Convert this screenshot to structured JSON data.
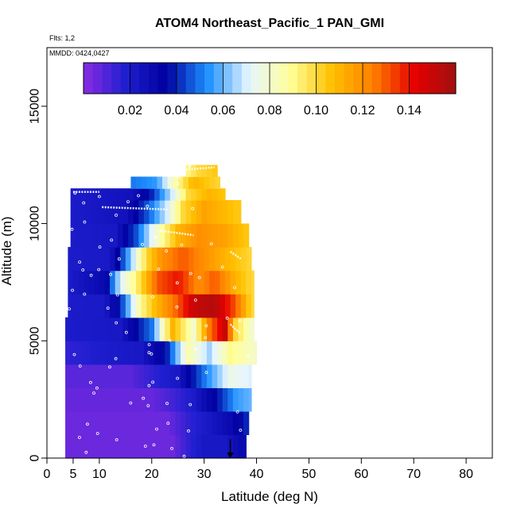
{
  "chart_data": {
    "type": "heatmap",
    "title": "ATOM4 Northeast_Pacific_1 PAN_GMI",
    "flights_label": "Flts: 1,2",
    "dates_label": "MMDD: 0424,0427",
    "xlabel": "Latitude (deg N)",
    "ylabel": "Altitude (m)",
    "xlim": [
      0,
      85
    ],
    "ylim": [
      0,
      17500
    ],
    "x_ticks": [
      0,
      5,
      10,
      20,
      30,
      40,
      50,
      60,
      70,
      80
    ],
    "y_ticks": [
      0,
      5000,
      10000,
      15000
    ],
    "colorbar": {
      "min": 0.0,
      "max": 0.16,
      "ticks": [
        0.02,
        0.04,
        0.06,
        0.08,
        0.1,
        0.12,
        0.14
      ],
      "tick_labels": [
        "0.02",
        "0.04",
        "0.06",
        "0.08",
        "0.10",
        "0.12",
        "0.14"
      ],
      "colors": [
        "#8a2be2",
        "#1f1fd0",
        "#0000a0",
        "#1e90ff",
        "#e6f5ff",
        "#ffff99",
        "#ffc000",
        "#ff7f00",
        "#e60000",
        "#a01010"
      ]
    },
    "bands": [
      {
        "alt": [
          0,
          1000
        ],
        "lat": [
          3.5,
          38
        ],
        "stops": [
          [
            4,
            0.005
          ],
          [
            24,
            0.005
          ],
          [
            27,
            0.015
          ],
          [
            30,
            0.022
          ],
          [
            34,
            0.022
          ],
          [
            37,
            0.03
          ]
        ]
      },
      {
        "alt": [
          1000,
          2000
        ],
        "lat": [
          3.5,
          38.5
        ],
        "stops": [
          [
            4,
            0.005
          ],
          [
            23,
            0.005
          ],
          [
            27,
            0.015
          ],
          [
            31,
            0.022
          ],
          [
            35,
            0.03
          ],
          [
            38,
            0.04
          ]
        ]
      },
      {
        "alt": [
          2000,
          3000
        ],
        "lat": [
          3.5,
          39
        ],
        "stops": [
          [
            4,
            0.006
          ],
          [
            20,
            0.006
          ],
          [
            24,
            0.012
          ],
          [
            28,
            0.02
          ],
          [
            33,
            0.04
          ],
          [
            36,
            0.055
          ],
          [
            39,
            0.06
          ]
        ]
      },
      {
        "alt": [
          3000,
          4000
        ],
        "lat": [
          3.5,
          39
        ],
        "stops": [
          [
            4,
            0.008
          ],
          [
            16,
            0.008
          ],
          [
            20,
            0.015
          ],
          [
            25,
            0.022
          ],
          [
            30,
            0.05
          ],
          [
            35,
            0.075
          ],
          [
            39,
            0.07
          ]
        ]
      },
      {
        "alt": [
          4000,
          5000
        ],
        "lat": [
          3.5,
          40
        ],
        "stops": [
          [
            4,
            0.015
          ],
          [
            12,
            0.02
          ],
          [
            18,
            0.022
          ],
          [
            23,
            0.04
          ],
          [
            27,
            0.085
          ],
          [
            31,
            0.065
          ],
          [
            35,
            0.09
          ],
          [
            40,
            0.08
          ]
        ]
      },
      {
        "alt": [
          5000,
          6000
        ],
        "lat": [
          3.5,
          39.5
        ],
        "stops": [
          [
            4,
            0.02
          ],
          [
            14,
            0.022
          ],
          [
            20,
            0.05
          ],
          [
            24,
            0.11
          ],
          [
            28,
            0.08
          ],
          [
            31,
            0.125
          ],
          [
            34,
            0.15
          ],
          [
            36,
            0.1
          ],
          [
            39,
            0.08
          ]
        ]
      },
      {
        "alt": [
          6000,
          7000
        ],
        "lat": [
          4,
          39.5
        ],
        "stops": [
          [
            4,
            0.02
          ],
          [
            11,
            0.021
          ],
          [
            14,
            0.04
          ],
          [
            18,
            0.09
          ],
          [
            21,
            0.11
          ],
          [
            25,
            0.13
          ],
          [
            28,
            0.15
          ],
          [
            32,
            0.155
          ],
          [
            36,
            0.13
          ],
          [
            39,
            0.1
          ]
        ]
      },
      {
        "alt": [
          7000,
          8000
        ],
        "lat": [
          4,
          39.5
        ],
        "stops": [
          [
            4,
            0.02
          ],
          [
            11,
            0.03
          ],
          [
            14,
            0.07
          ],
          [
            18,
            0.1
          ],
          [
            21,
            0.13
          ],
          [
            25,
            0.14
          ],
          [
            29,
            0.12
          ],
          [
            32,
            0.13
          ],
          [
            36,
            0.11
          ],
          [
            39,
            0.1
          ]
        ]
      },
      {
        "alt": [
          8000,
          9000
        ],
        "lat": [
          4,
          39
        ],
        "stops": [
          [
            4,
            0.02
          ],
          [
            12,
            0.021
          ],
          [
            15,
            0.05
          ],
          [
            19,
            0.1
          ],
          [
            22,
            0.12
          ],
          [
            26,
            0.13
          ],
          [
            30,
            0.12
          ],
          [
            34,
            0.11
          ],
          [
            39,
            0.1
          ]
        ]
      },
      {
        "alt": [
          9000,
          10000
        ],
        "lat": [
          4.5,
          38.5
        ],
        "stops": [
          [
            4,
            0.02
          ],
          [
            13,
            0.022
          ],
          [
            17,
            0.045
          ],
          [
            21,
            0.08
          ],
          [
            25,
            0.11
          ],
          [
            29,
            0.12
          ],
          [
            34,
            0.115
          ],
          [
            38,
            0.105
          ]
        ]
      },
      {
        "alt": [
          10000,
          11000
        ],
        "lat": [
          4.5,
          37
        ],
        "stops": [
          [
            4,
            0.02
          ],
          [
            15,
            0.025
          ],
          [
            19,
            0.045
          ],
          [
            23,
            0.07
          ],
          [
            26,
            0.1
          ],
          [
            30,
            0.115
          ],
          [
            36,
            0.105
          ]
        ]
      },
      {
        "alt": [
          11000,
          11500
        ],
        "lat": [
          4.5,
          34
        ],
        "stops": [
          [
            4,
            0.02
          ],
          [
            16,
            0.025
          ],
          [
            20,
            0.04
          ],
          [
            24,
            0.07
          ],
          [
            27,
            0.1
          ],
          [
            31,
            0.11
          ],
          [
            34,
            0.105
          ]
        ]
      },
      {
        "alt": [
          11500,
          12000
        ],
        "lat": [
          16,
          33
        ],
        "stops": [
          [
            16,
            0.05
          ],
          [
            21,
            0.055
          ],
          [
            25,
            0.09
          ],
          [
            28,
            0.11
          ],
          [
            33,
            0.1
          ]
        ]
      },
      {
        "alt": [
          12000,
          12500
        ],
        "lat": [
          26.5,
          32.5
        ],
        "stops": [
          [
            26.5,
            0.09
          ],
          [
            29,
            0.1
          ],
          [
            32.5,
            0.105
          ]
        ]
      }
    ],
    "tracks": [
      [
        [
          5,
          11350
        ],
        [
          10,
          11350
        ]
      ],
      [
        [
          10.5,
          10700
        ],
        [
          23,
          10600
        ]
      ],
      [
        [
          26.5,
          12300
        ],
        [
          32,
          12400
        ]
      ],
      [
        [
          21.5,
          9700
        ],
        [
          28,
          9500
        ]
      ],
      [
        [
          35,
          8800
        ],
        [
          37,
          8500
        ]
      ],
      [
        [
          35,
          5700
        ],
        [
          37,
          5300
        ]
      ]
    ],
    "arrow": {
      "lat": 35,
      "alt_from": 800,
      "alt_to": 0
    }
  }
}
